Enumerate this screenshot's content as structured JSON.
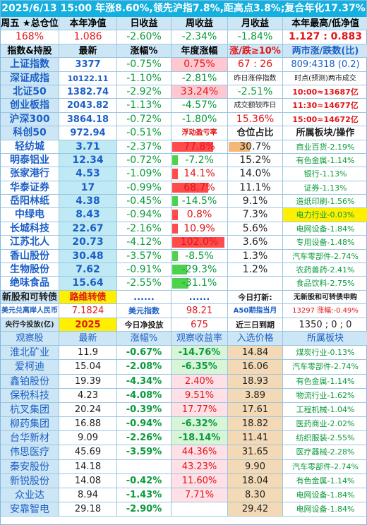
{
  "title": "2025/6/13 15:00 年涨8.60%,领先沪指7.8%,距高点3.8%;复合年化17.37%",
  "summary": {
    "headers": [
      "周五 ★总仓位",
      "本年净值",
      "日收益",
      "周收益",
      "月收益",
      "本年最高/低净值"
    ],
    "values": [
      "168%",
      "1.086",
      "-2.60%",
      "-2.34%",
      "-1.84%",
      "1.127 : 0.883"
    ]
  },
  "index_header": [
    "指数&持股",
    "最新",
    "涨幅%",
    "年度涨幅",
    "涨/跌≥10%",
    "两市涨/跌数(比)"
  ],
  "indices": [
    {
      "name": "上证指数",
      "latest": "3377",
      "chg": "-0.75%",
      "ytd": "0.75%",
      "extra": "67 : 26",
      "extra2": "809:4318 (0.2)"
    },
    {
      "name": "深证成指",
      "latest": "10122.11",
      "chg": "-1.10%",
      "ytd": "-2.81%",
      "extra": "昨日涨停指数",
      "extra2": "时点(预测)两市成交"
    },
    {
      "name": "北证50",
      "latest": "1382.74",
      "chg": "-2.92%",
      "ytd": "33.24%",
      "extra": "-2.51%",
      "extra2": "10:00≈13687亿"
    },
    {
      "name": "创业板指",
      "latest": "2043.82",
      "chg": "-1.13%",
      "ytd": "-4.57%",
      "extra": "成交额较昨日",
      "extra2": "11:30≈14677亿"
    },
    {
      "name": "沪深300",
      "latest": "3864.18",
      "chg": "-0.72%",
      "ytd": "-1.80%",
      "extra": "15.36%",
      "extra2": "15:00≈14672亿"
    },
    {
      "name": "科创50",
      "latest": "972.94",
      "chg": "-0.51%",
      "ytd": "浮动盈亏率",
      "extra": "仓位占比",
      "extra2": "所属板块/操作"
    }
  ],
  "holdings": [
    {
      "name": "轻纺城",
      "latest": "3.71",
      "chg": "-2.37%",
      "pnl": "77.8%",
      "pnl_frac": 0.78,
      "pos": "30.7%",
      "pos_frac": 0.4,
      "sector": "商业百货-2.19%"
    },
    {
      "name": "明泰铝业",
      "latest": "12.34",
      "chg": "-0.72%",
      "pnl": "-7.2%",
      "pnl_frac": 0.07,
      "pos": "15.2%",
      "pos_frac": 0.0,
      "sector": "有色金属-1.14%"
    },
    {
      "name": "张家港行",
      "latest": "4.53",
      "chg": "-1.09%",
      "pnl": "14.1%",
      "pnl_frac": 0.14,
      "pos": "14.0%",
      "pos_frac": 0.0,
      "sector": "银行-1.13%"
    },
    {
      "name": "华泰证券",
      "latest": "17",
      "chg": "-0.99%",
      "pnl": "68.7%",
      "pnl_frac": 0.69,
      "pos": "11.1%",
      "pos_frac": 0.0,
      "sector": "证券-1.13%"
    },
    {
      "name": "岳阳林纸",
      "latest": "4.38",
      "chg": "-0.45%",
      "pnl": "-14.5%",
      "pnl_frac": 0.15,
      "pos": "9.1%",
      "pos_frac": 0.0,
      "sector": "造纸印刷-1.56%"
    },
    {
      "name": "中绿电",
      "latest": "8.43",
      "chg": "-0.94%",
      "pnl": "0.8%",
      "pnl_frac": 0.01,
      "pos": "7.3%",
      "pos_frac": 0.0,
      "sector": "电力行业-0.03%"
    },
    {
      "name": "长城科技",
      "latest": "22.67",
      "chg": "-2.16%",
      "pnl": "10.9%",
      "pnl_frac": 0.11,
      "pos": "5.6%",
      "pos_frac": 0.0,
      "sector": "电网设备-1.84%"
    },
    {
      "name": "江苏北人",
      "latest": "20.73",
      "chg": "-4.12%",
      "pnl": "102.0%",
      "pnl_frac": 1.0,
      "pos": "3.6%",
      "pos_frac": 0.0,
      "sector": "专用设备-1.48%"
    },
    {
      "name": "香山股份",
      "latest": "30.48",
      "chg": "-3.57%",
      "pnl": "-8.5%",
      "pnl_frac": 0.09,
      "pos": "1.3%",
      "pos_frac": 0.0,
      "sector": "汽车零部件-2.74%"
    },
    {
      "name": "生物股份",
      "latest": "7.62",
      "chg": "-0.91%",
      "pnl": "-29.3%",
      "pnl_frac": 0.29,
      "pos": "1.2%",
      "pos_frac": 0.0,
      "sector": "农药兽药-2.41%"
    },
    {
      "name": "绝味食品",
      "latest": "15.64",
      "chg": "-2.55%",
      "pnl": "-31.1%",
      "pnl_frac": 0.31,
      "pos": "",
      "pos_frac": 0.0,
      "sector": "食品饮料-2.75%"
    }
  ],
  "misc": {
    "new_stock_label": "新股和可转债",
    "new_stock_value": "路维转债",
    "dots1": "......",
    "dots2": "......",
    "today_label": "今日打新:",
    "today_value": "无新股和可转债申购",
    "usd_label": "美元兑离岸人民币",
    "usd_value": "7.1824",
    "usd_idx_label": "美元指数",
    "usd_idx_value": "98.21",
    "a50_label": "A50期指当月",
    "a50_value": "13297 涨幅:-0.49%",
    "cum_label": "央行今投放(亿)",
    "cum_value": "2025",
    "net_label": "今日净投放",
    "net_value": "675",
    "recent_label": "近三日到期",
    "recent_value": "1350 ; 0 ; 0"
  },
  "watch_header": [
    "观察股",
    "最新",
    "涨幅%",
    "观察收益率",
    "入选价格",
    "所属板块"
  ],
  "watch": [
    {
      "name": "淮北矿业",
      "latest": "11.9",
      "chg": "-0.67%",
      "ret": "-14.76%",
      "ret_frac": 0.15,
      "price": "14.84",
      "sector": "煤炭行业-0.13%"
    },
    {
      "name": "爱柯迪",
      "latest": "15.04",
      "chg": "-2.08%",
      "ret": "-6.35%",
      "ret_frac": 0.06,
      "price": "16.06",
      "sector": "汽车零部件-2.74%"
    },
    {
      "name": "鑫铂股份",
      "latest": "19.39",
      "chg": "-4.34%",
      "ret": "2.40%",
      "ret_frac": 0.02,
      "price": "18.93",
      "sector": "有色金属-1.14%"
    },
    {
      "name": "保税科技",
      "latest": "4.23",
      "chg": "-4.08%",
      "ret": "9.51%",
      "ret_frac": 0.1,
      "price": "3.89",
      "sector": "物流行业-1.62%"
    },
    {
      "name": "杭叉集团",
      "latest": "20.24",
      "chg": "-0.39%",
      "ret": "17.77%",
      "ret_frac": 0.18,
      "price": "17.61",
      "sector": "工程机械-1.04%"
    },
    {
      "name": "柳药集团",
      "latest": "16.88",
      "chg": "-0.94%",
      "ret": "-6.32%",
      "ret_frac": 0.06,
      "price": "18.82",
      "sector": "医药商业-2.02%"
    },
    {
      "name": "台华新材",
      "latest": "9.09",
      "chg": "-2.26%",
      "ret": "-18.14%",
      "ret_frac": 0.18,
      "price": "11.41",
      "sector": "纺织服装-2.55%"
    },
    {
      "name": "伟思医疗",
      "latest": "45.69",
      "chg": "-3.59%",
      "ret": "44.36%",
      "ret_frac": 0.44,
      "price": "31.65",
      "sector": "医疗器械-2.28%"
    },
    {
      "name": "秦安股份",
      "latest": "14.18",
      "chg": "",
      "ret": "43.23%",
      "ret_frac": 0.43,
      "price": "9.90",
      "sector": "汽车零部件-2.74%"
    },
    {
      "name": "新锐股份",
      "latest": "14.08",
      "chg": "-0.42%",
      "ret": "11.60%",
      "ret_frac": 0.12,
      "price": "18.04",
      "sector": "有色金属-1.14%"
    },
    {
      "name": "众业达",
      "latest": "8.94",
      "chg": "-1.43%",
      "ret": "7.71%",
      "ret_frac": 0.08,
      "price": "8.30",
      "sector": "电网设备-1.84%"
    },
    {
      "name": "安靠智电",
      "latest": "29.18",
      "chg": "-2.90%",
      "ret": "",
      "ret_frac": 0.0,
      "price": "29.42",
      "sector": "电网设备-1.84%"
    }
  ]
}
